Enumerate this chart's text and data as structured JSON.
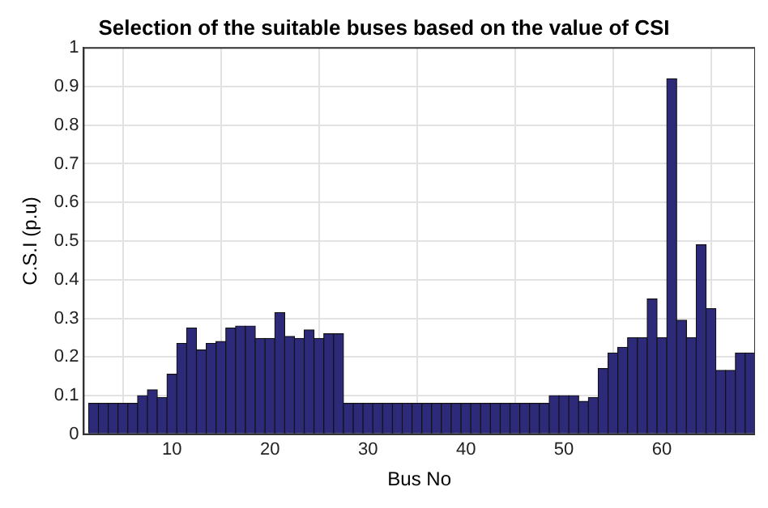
{
  "chart_data": {
    "type": "bar",
    "title": "Selection of the suitable buses based on the value of CSI",
    "xlabel": "Bus No",
    "ylabel": "C.S.I (p.u)",
    "x": [
      2,
      3,
      4,
      5,
      6,
      7,
      8,
      9,
      10,
      11,
      12,
      13,
      14,
      15,
      16,
      17,
      18,
      19,
      20,
      21,
      22,
      23,
      24,
      25,
      26,
      27,
      28,
      29,
      30,
      31,
      32,
      33,
      34,
      35,
      36,
      37,
      38,
      39,
      40,
      41,
      42,
      43,
      44,
      45,
      46,
      47,
      48,
      49,
      50,
      51,
      52,
      53,
      54,
      55,
      56,
      57,
      58,
      59,
      60,
      61,
      62,
      63,
      64,
      65,
      66,
      67,
      68,
      69
    ],
    "values": [
      0.08,
      0.08,
      0.08,
      0.08,
      0.08,
      0.1,
      0.115,
      0.095,
      0.155,
      0.235,
      0.275,
      0.218,
      0.235,
      0.24,
      0.275,
      0.28,
      0.28,
      0.248,
      0.248,
      0.315,
      0.253,
      0.248,
      0.27,
      0.248,
      0.26,
      0.26,
      0.08,
      0.08,
      0.08,
      0.08,
      0.08,
      0.08,
      0.08,
      0.08,
      0.08,
      0.08,
      0.08,
      0.08,
      0.08,
      0.08,
      0.08,
      0.08,
      0.08,
      0.08,
      0.08,
      0.08,
      0.08,
      0.1,
      0.1,
      0.1,
      0.085,
      0.095,
      0.17,
      0.21,
      0.225,
      0.25,
      0.25,
      0.35,
      0.25,
      0.92,
      0.295,
      0.25,
      0.49,
      0.325,
      0.165,
      0.165,
      0.21,
      0.21
    ],
    "color": "#2e2a7a",
    "xlim": [
      1,
      69.5
    ],
    "xticks": [
      10,
      20,
      30,
      40,
      50,
      60
    ],
    "ylim": [
      0,
      1
    ],
    "yticks": [
      0,
      0.1,
      0.2,
      0.3,
      0.4,
      0.5,
      0.6,
      0.7,
      0.8,
      0.9,
      1
    ],
    "grid": true,
    "legend": false
  }
}
